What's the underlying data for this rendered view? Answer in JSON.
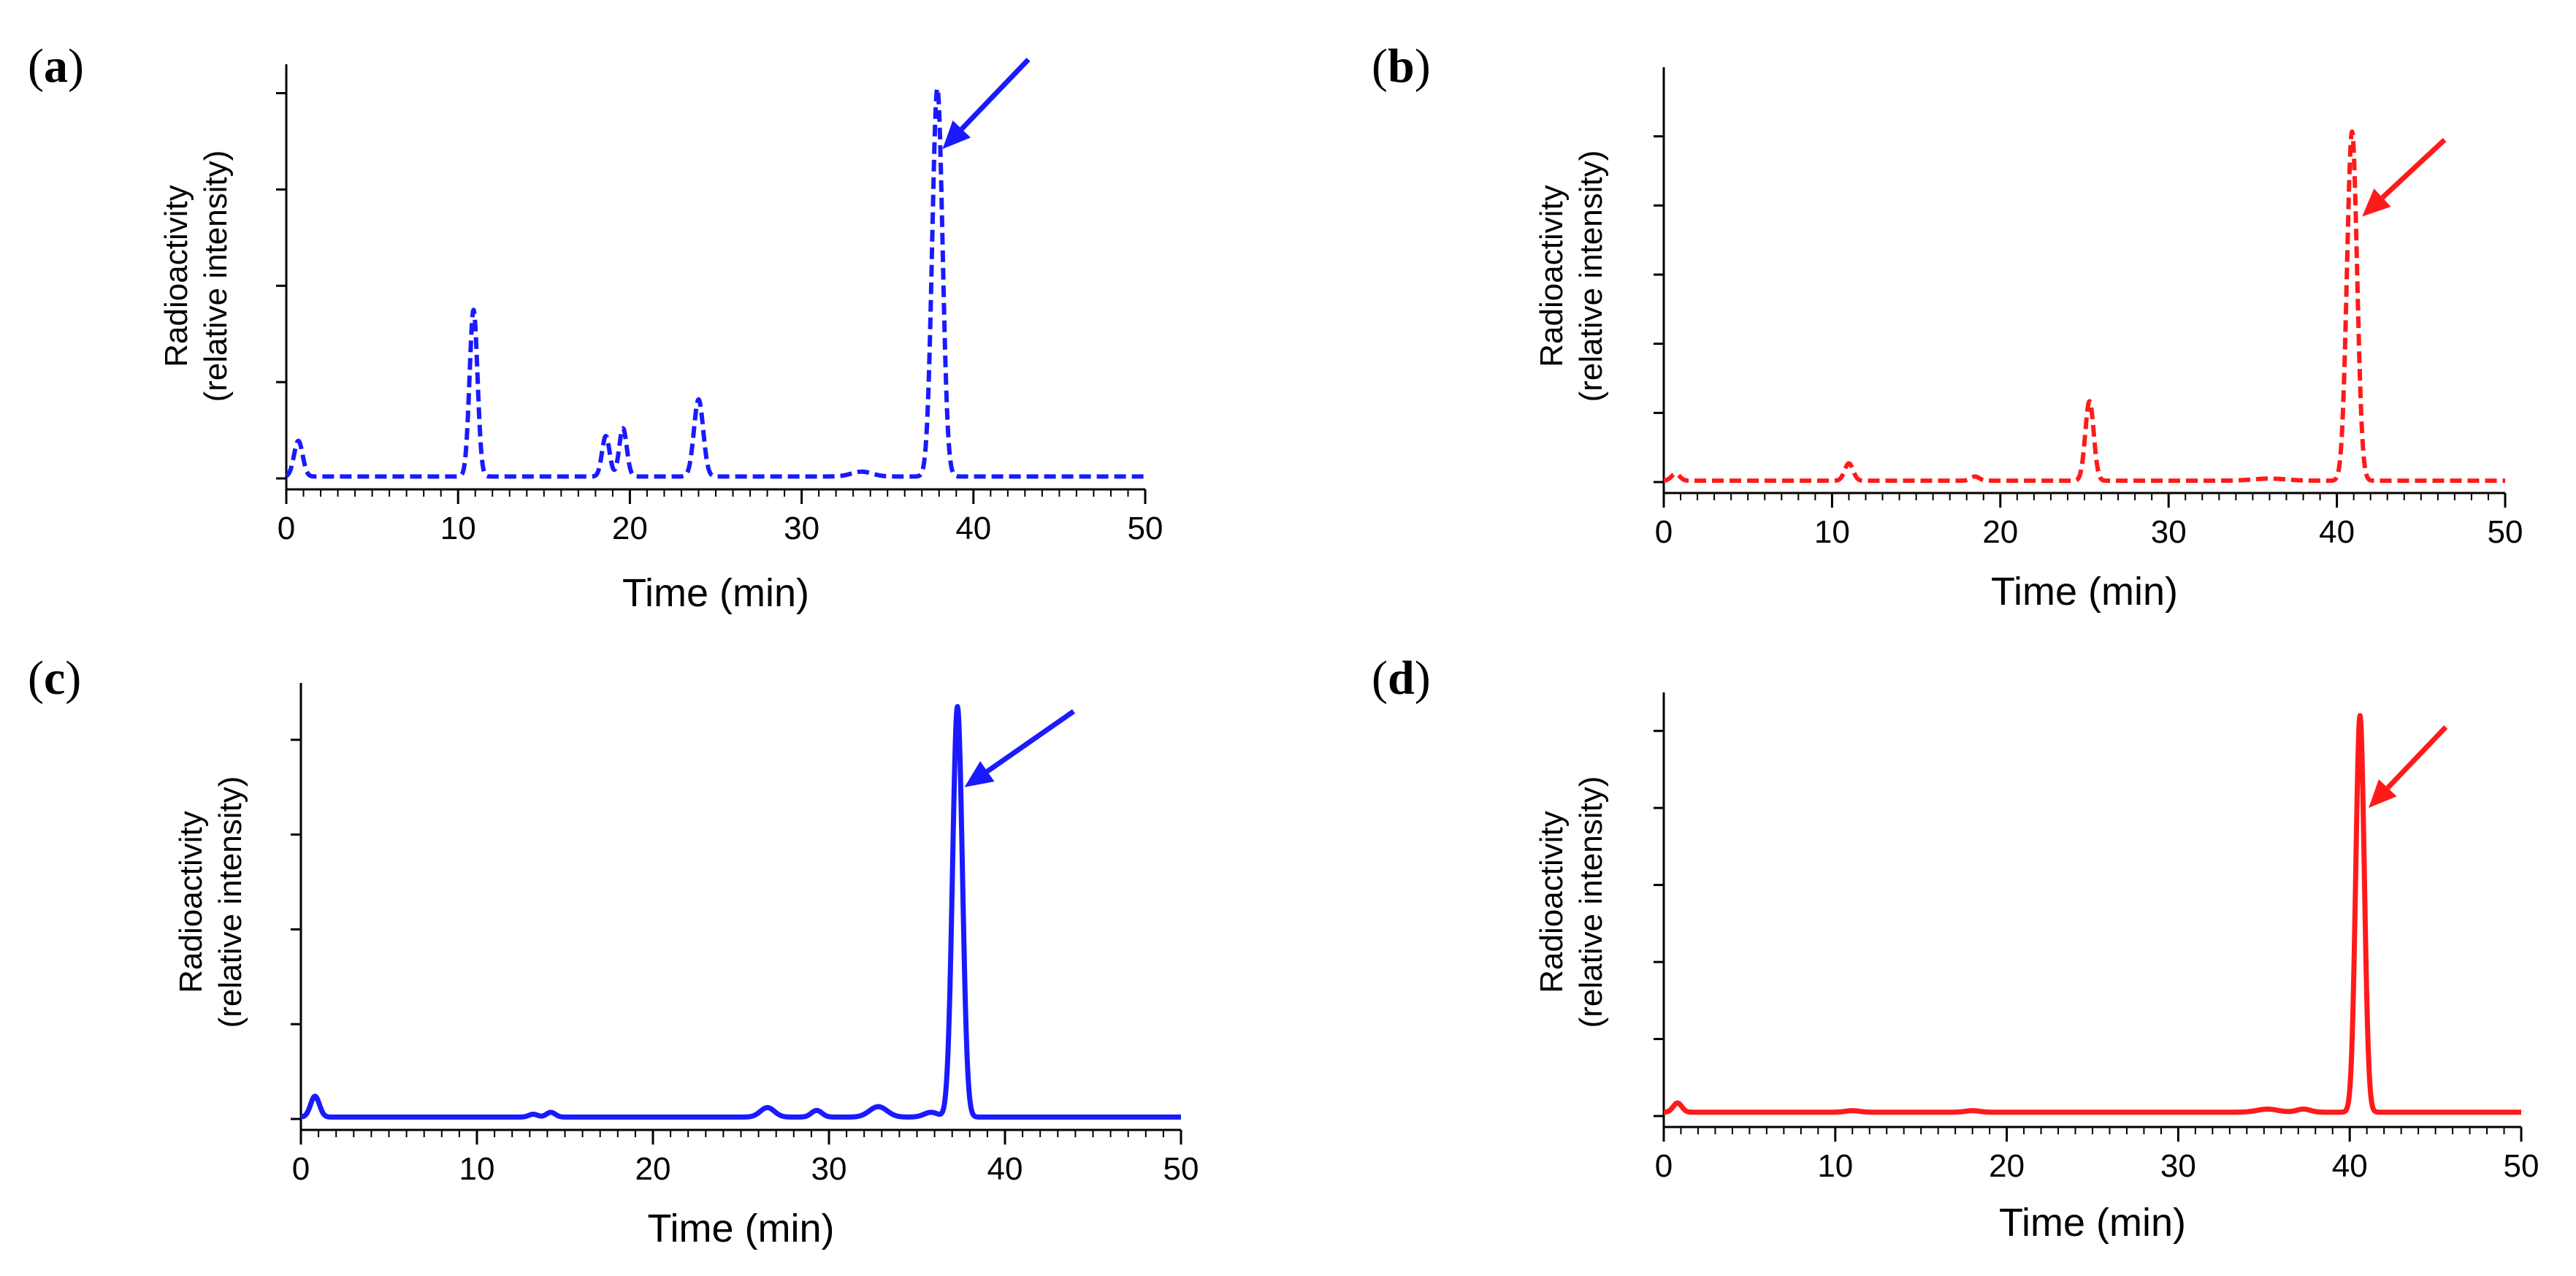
{
  "chart_data": [
    {
      "type": "line",
      "panel_label": "a",
      "line_style": "dashed",
      "color": "#1a1aff",
      "xlabel": "Time (min)",
      "ylabel_line1": "Radioactivity",
      "ylabel_line2": "(relative intensity)",
      "xlim": [
        0,
        50
      ],
      "ylim": [
        0,
        4.3
      ],
      "x_ticks": [
        0,
        10,
        20,
        30,
        40,
        50
      ],
      "y_ticks": [
        0,
        1,
        2,
        3,
        4
      ],
      "baseline": 0.02,
      "peaks": [
        [
          0.7,
          0.37,
          0.25
        ],
        [
          10.9,
          1.73,
          0.23
        ],
        [
          18.6,
          0.42,
          0.22
        ],
        [
          19.6,
          0.5,
          0.22
        ],
        [
          24.0,
          0.8,
          0.27
        ],
        [
          33.5,
          0.05,
          0.6
        ],
        [
          37.9,
          4.03,
          0.3
        ]
      ],
      "arrow": {
        "from": [
          43.2,
          4.35
        ],
        "to": [
          38.2,
          3.42
        ]
      }
    },
    {
      "type": "line",
      "panel_label": "b",
      "line_style": "dashed",
      "color": "#ff1a1a",
      "xlabel": "Time (min)",
      "ylabel_line1": "Radioactivity",
      "ylabel_line2": "(relative intensity)",
      "xlim": [
        0,
        50
      ],
      "ylim": [
        0,
        6.0
      ],
      "x_ticks": [
        0,
        10,
        20,
        30,
        40,
        50
      ],
      "y_ticks": [
        0,
        1,
        2,
        3,
        4,
        5
      ],
      "baseline": 0.02,
      "peaks": [
        [
          0.7,
          0.1,
          0.25
        ],
        [
          11.0,
          0.25,
          0.25
        ],
        [
          18.5,
          0.06,
          0.25
        ],
        [
          25.3,
          1.15,
          0.25
        ],
        [
          36.0,
          0.03,
          1.0
        ],
        [
          40.9,
          5.05,
          0.3
        ]
      ],
      "arrow": {
        "from": [
          46.4,
          4.95
        ],
        "to": [
          41.5,
          3.84
        ]
      }
    },
    {
      "type": "line",
      "panel_label": "c",
      "line_style": "solid",
      "color": "#1a1aff",
      "xlabel": "Time (min)",
      "ylabel_line1": "Radioactivity",
      "ylabel_line2": "(relative intensity)",
      "xlim": [
        0,
        50
      ],
      "ylim": [
        0,
        4.6
      ],
      "x_ticks": [
        0,
        10,
        20,
        30,
        40,
        50
      ],
      "y_ticks": [
        0,
        1,
        2,
        3,
        4
      ],
      "baseline": 0.02,
      "peaks": [
        [
          0.8,
          0.22,
          0.25
        ],
        [
          13.2,
          0.03,
          0.25
        ],
        [
          14.2,
          0.05,
          0.25
        ],
        [
          26.5,
          0.1,
          0.4
        ],
        [
          29.3,
          0.07,
          0.3
        ],
        [
          32.8,
          0.11,
          0.5
        ],
        [
          35.8,
          0.05,
          0.4
        ],
        [
          37.3,
          4.33,
          0.28
        ]
      ],
      "arrow": {
        "from": [
          43.9,
          4.3
        ],
        "to": [
          37.7,
          3.5
        ]
      }
    },
    {
      "type": "line",
      "panel_label": "d",
      "line_style": "solid",
      "color": "#ff1a1a",
      "xlabel": "Time (min)",
      "ylabel_line1": "Radioactivity",
      "ylabel_line2": "(relative intensity)",
      "xlim": [
        0,
        50
      ],
      "ylim": [
        0,
        5.5
      ],
      "x_ticks": [
        0,
        10,
        20,
        30,
        40,
        50
      ],
      "y_ticks": [
        0,
        1,
        2,
        3,
        4,
        5
      ],
      "baseline": 0.05,
      "peaks": [
        [
          0.8,
          0.12,
          0.25
        ],
        [
          11.0,
          0.02,
          0.4
        ],
        [
          18.0,
          0.02,
          0.4
        ],
        [
          35.2,
          0.04,
          0.6
        ],
        [
          37.3,
          0.04,
          0.4
        ],
        [
          40.6,
          5.15,
          0.25
        ]
      ],
      "arrow": {
        "from": [
          45.6,
          5.05
        ],
        "to": [
          41.1,
          4.0
        ]
      }
    }
  ]
}
